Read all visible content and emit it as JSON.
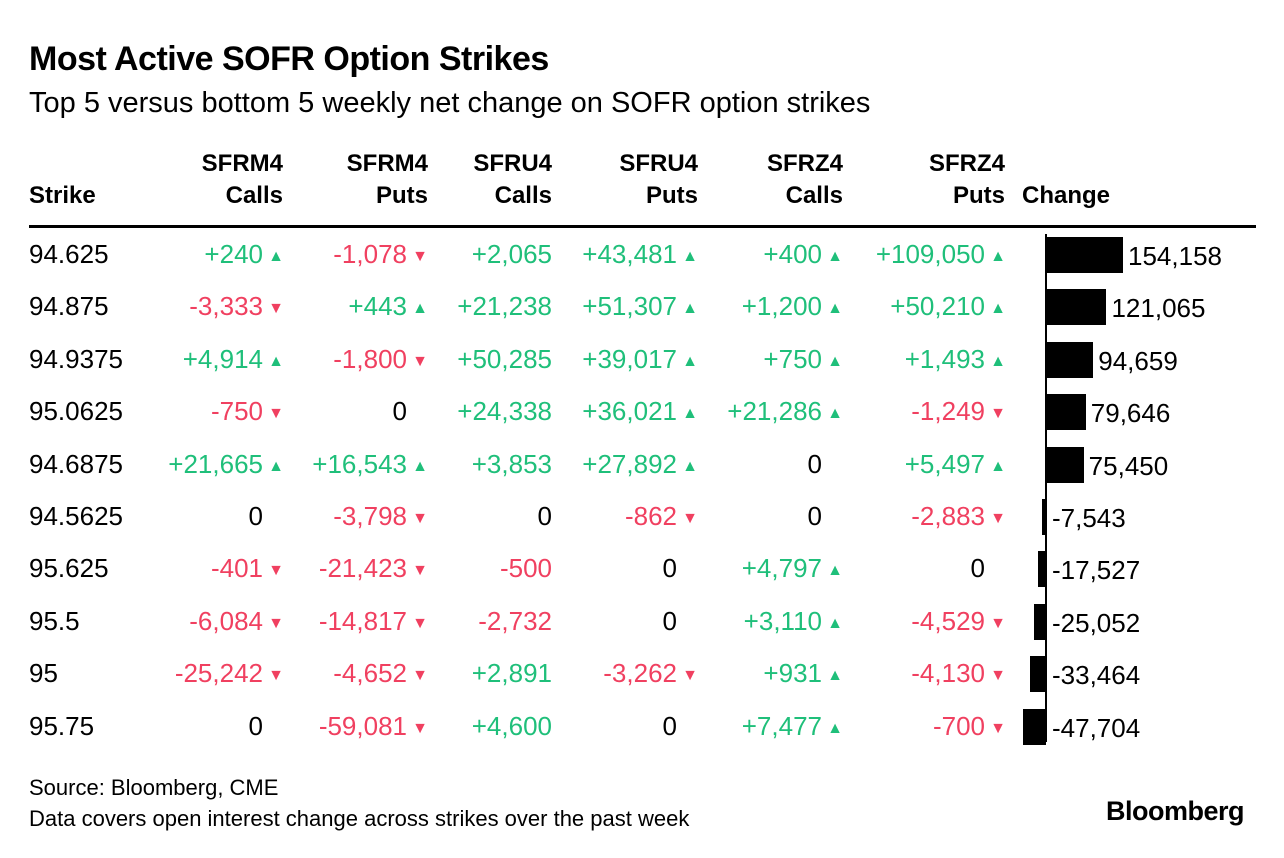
{
  "title": "Most Active SOFR Option Strikes",
  "subtitle": "Top 5 versus bottom 5 weekly net change on SOFR option strikes",
  "columns": [
    {
      "line1": "",
      "line2": "Strike"
    },
    {
      "line1": "SFRM4",
      "line2": "Calls"
    },
    {
      "line1": "SFRM4",
      "line2": "Puts"
    },
    {
      "line1": "SFRU4",
      "line2": "Calls"
    },
    {
      "line1": "SFRU4",
      "line2": "Puts"
    },
    {
      "line1": "SFRZ4",
      "line2": "Calls"
    },
    {
      "line1": "SFRZ4",
      "line2": "Puts"
    },
    {
      "line1": "",
      "line2": "Change"
    }
  ],
  "colors": {
    "positive": "#1fbf7a",
    "negative": "#f04060",
    "bar": "#000000"
  },
  "chart_data": {
    "type": "table",
    "title": "Most Active SOFR Option Strikes",
    "subtitle": "Top 5 versus bottom 5 weekly net change on SOFR option strikes",
    "bar_column": "Change",
    "rows": [
      {
        "strike": "94.625",
        "cells": [
          {
            "text": "+240",
            "dir": "up"
          },
          {
            "text": "-1,078",
            "dir": "down"
          },
          {
            "text": "+2,065",
            "dir": "none",
            "tone": "pos"
          },
          {
            "text": "+43,481",
            "dir": "up"
          },
          {
            "text": "+400",
            "dir": "up"
          },
          {
            "text": "+109,050",
            "dir": "up"
          }
        ],
        "change": 154158,
        "change_label": "154,158"
      },
      {
        "strike": "94.875",
        "cells": [
          {
            "text": "-3,333",
            "dir": "down"
          },
          {
            "text": "+443",
            "dir": "up"
          },
          {
            "text": "+21,238",
            "dir": "none",
            "tone": "pos"
          },
          {
            "text": "+51,307",
            "dir": "up"
          },
          {
            "text": "+1,200",
            "dir": "up"
          },
          {
            "text": "+50,210",
            "dir": "up"
          }
        ],
        "change": 121065,
        "change_label": "121,065"
      },
      {
        "strike": "94.9375",
        "cells": [
          {
            "text": "+4,914",
            "dir": "up"
          },
          {
            "text": "-1,800",
            "dir": "down"
          },
          {
            "text": "+50,285",
            "dir": "none",
            "tone": "pos"
          },
          {
            "text": "+39,017",
            "dir": "up"
          },
          {
            "text": "+750",
            "dir": "up"
          },
          {
            "text": "+1,493",
            "dir": "up"
          }
        ],
        "change": 94659,
        "change_label": "94,659"
      },
      {
        "strike": "95.0625",
        "cells": [
          {
            "text": "-750",
            "dir": "down"
          },
          {
            "text": "0",
            "dir": "none"
          },
          {
            "text": "+24,338",
            "dir": "none",
            "tone": "pos"
          },
          {
            "text": "+36,021",
            "dir": "up"
          },
          {
            "text": "+21,286",
            "dir": "up"
          },
          {
            "text": "-1,249",
            "dir": "down"
          }
        ],
        "change": 79646,
        "change_label": "79,646"
      },
      {
        "strike": "94.6875",
        "cells": [
          {
            "text": "+21,665",
            "dir": "up"
          },
          {
            "text": "+16,543",
            "dir": "up"
          },
          {
            "text": "+3,853",
            "dir": "none",
            "tone": "pos"
          },
          {
            "text": "+27,892",
            "dir": "up"
          },
          {
            "text": "0",
            "dir": "none"
          },
          {
            "text": "+5,497",
            "dir": "up"
          }
        ],
        "change": 75450,
        "change_label": "75,450"
      },
      {
        "strike": "94.5625",
        "cells": [
          {
            "text": "0",
            "dir": "none"
          },
          {
            "text": "-3,798",
            "dir": "down"
          },
          {
            "text": "0",
            "dir": "none"
          },
          {
            "text": "-862",
            "dir": "down"
          },
          {
            "text": "0",
            "dir": "none"
          },
          {
            "text": "-2,883",
            "dir": "down"
          }
        ],
        "change": -7543,
        "change_label": "-7,543"
      },
      {
        "strike": "95.625",
        "cells": [
          {
            "text": "-401",
            "dir": "down"
          },
          {
            "text": "-21,423",
            "dir": "down"
          },
          {
            "text": "-500",
            "dir": "none",
            "tone": "neg"
          },
          {
            "text": "0",
            "dir": "none"
          },
          {
            "text": "+4,797",
            "dir": "up"
          },
          {
            "text": "0",
            "dir": "none"
          }
        ],
        "change": -17527,
        "change_label": "-17,527"
      },
      {
        "strike": "95.5",
        "cells": [
          {
            "text": "-6,084",
            "dir": "down"
          },
          {
            "text": "-14,817",
            "dir": "down"
          },
          {
            "text": "-2,732",
            "dir": "none",
            "tone": "neg"
          },
          {
            "text": "0",
            "dir": "none"
          },
          {
            "text": "+3,110",
            "dir": "up"
          },
          {
            "text": "-4,529",
            "dir": "down"
          }
        ],
        "change": -25052,
        "change_label": "-25,052"
      },
      {
        "strike": "95",
        "cells": [
          {
            "text": "-25,242",
            "dir": "down"
          },
          {
            "text": "-4,652",
            "dir": "down"
          },
          {
            "text": "+2,891",
            "dir": "none",
            "tone": "pos"
          },
          {
            "text": "-3,262",
            "dir": "down"
          },
          {
            "text": "+931",
            "dir": "up"
          },
          {
            "text": "-4,130",
            "dir": "down"
          }
        ],
        "change": -33464,
        "change_label": "-33,464"
      },
      {
        "strike": "95.75",
        "cells": [
          {
            "text": "0",
            "dir": "none"
          },
          {
            "text": "-59,081",
            "dir": "down"
          },
          {
            "text": "+4,600",
            "dir": "none",
            "tone": "pos"
          },
          {
            "text": "0",
            "dir": "none"
          },
          {
            "text": "+7,477",
            "dir": "up"
          },
          {
            "text": "-700",
            "dir": "down"
          }
        ],
        "change": -47704,
        "change_label": "-47,704"
      }
    ]
  },
  "footer": {
    "source": "Source: Bloomberg, CME",
    "note": "Data covers open interest change across strikes over the past week",
    "logo": "Bloomberg"
  }
}
